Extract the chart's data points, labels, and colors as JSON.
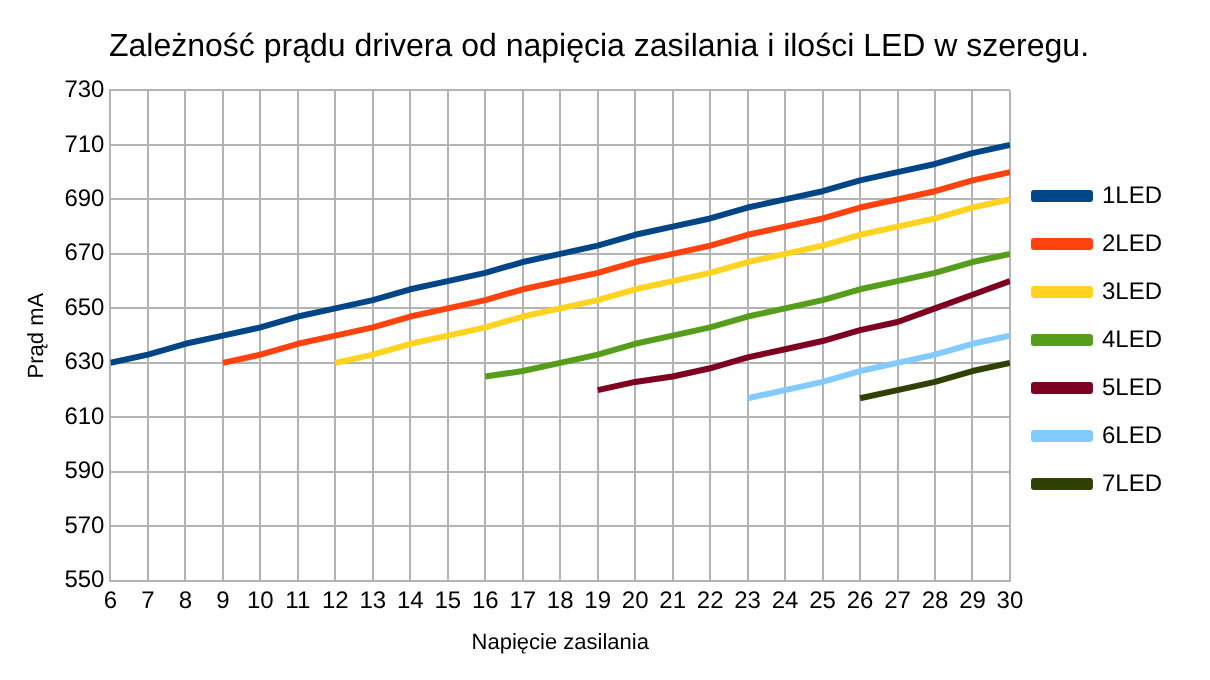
{
  "chart_data": {
    "type": "line",
    "title": "Zależność prądu drivera od napięcia zasilania i ilości LED w szeregu.",
    "xlabel": "Napięcie zasilania",
    "ylabel": "Prąd mA",
    "xlim": [
      6,
      30
    ],
    "xticks": [
      6,
      7,
      8,
      9,
      10,
      11,
      12,
      13,
      14,
      15,
      16,
      17,
      18,
      19,
      20,
      21,
      22,
      23,
      24,
      25,
      26,
      27,
      28,
      29,
      30
    ],
    "ylim": [
      550,
      730
    ],
    "yticks": [
      550,
      570,
      590,
      610,
      630,
      650,
      670,
      690,
      710,
      730
    ],
    "grid": true,
    "legend": "right",
    "marker": "none",
    "series": [
      {
        "name": "1LED",
        "color": "#004586",
        "x": [
          6,
          7,
          8,
          9,
          10,
          11,
          12,
          13,
          14,
          15,
          16,
          17,
          18,
          19,
          20,
          21,
          22,
          23,
          24,
          25,
          26,
          27,
          28,
          29,
          30
        ],
        "values": [
          630,
          633,
          637,
          640,
          643,
          647,
          650,
          653,
          657,
          660,
          663,
          667,
          670,
          673,
          677,
          680,
          683,
          687,
          690,
          693,
          697,
          700,
          703,
          707,
          710
        ]
      },
      {
        "name": "2LED",
        "color": "#ff420e",
        "x": [
          9,
          10,
          11,
          12,
          13,
          14,
          15,
          16,
          17,
          18,
          19,
          20,
          21,
          22,
          23,
          24,
          25,
          26,
          27,
          28,
          29,
          30
        ],
        "values": [
          630,
          633,
          637,
          640,
          643,
          647,
          650,
          653,
          657,
          660,
          663,
          667,
          670,
          673,
          677,
          680,
          683,
          687,
          690,
          693,
          697,
          700
        ]
      },
      {
        "name": "3LED",
        "color": "#ffd320",
        "x": [
          12,
          13,
          14,
          15,
          16,
          17,
          18,
          19,
          20,
          21,
          22,
          23,
          24,
          25,
          26,
          27,
          28,
          29,
          30
        ],
        "values": [
          630,
          633,
          637,
          640,
          643,
          647,
          650,
          653,
          657,
          660,
          663,
          667,
          670,
          673,
          677,
          680,
          683,
          687,
          690
        ]
      },
      {
        "name": "4LED",
        "color": "#579d1c",
        "x": [
          16,
          17,
          18,
          19,
          20,
          21,
          22,
          23,
          24,
          25,
          26,
          27,
          28,
          29,
          30
        ],
        "values": [
          625,
          627,
          630,
          633,
          637,
          640,
          643,
          647,
          650,
          653,
          657,
          660,
          663,
          667,
          670
        ]
      },
      {
        "name": "5LED",
        "color": "#7e0021",
        "x": [
          19,
          20,
          21,
          22,
          23,
          24,
          25,
          26,
          27,
          28,
          29,
          30
        ],
        "values": [
          620,
          623,
          625,
          628,
          632,
          635,
          638,
          642,
          645,
          650,
          655,
          660
        ]
      },
      {
        "name": "6LED",
        "color": "#83caff",
        "x": [
          23,
          24,
          25,
          26,
          27,
          28,
          29,
          30
        ],
        "values": [
          617,
          620,
          623,
          627,
          630,
          633,
          637,
          640
        ]
      },
      {
        "name": "7LED",
        "color": "#314004",
        "x": [
          26,
          27,
          28,
          29,
          30
        ],
        "values": [
          617,
          620,
          623,
          627,
          630
        ]
      }
    ]
  }
}
